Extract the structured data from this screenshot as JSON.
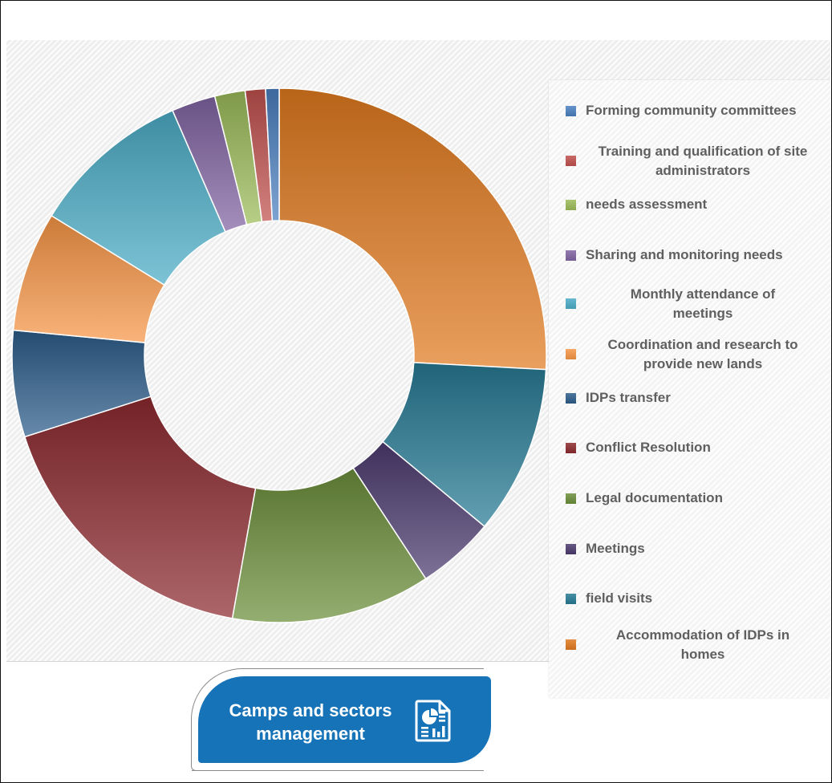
{
  "chart_data": {
    "type": "pie",
    "style": "donut",
    "legend_position": "right",
    "categories": [
      "Forming community committees",
      "Training and qualification of site administrators",
      "needs assessment",
      "Sharing and monitoring needs",
      "Monthly attendance of meetings",
      "Coordination and research to provide new lands",
      "IDPs transfer",
      "Conflict Resolution",
      "Legal documentation",
      "Meetings",
      "field visits",
      "Accommodation of IDPs in homes"
    ],
    "values": [
      0.8,
      1.2,
      1.8,
      2.6,
      9.5,
      7.1,
      6.3,
      16.9,
      11.8,
      4.6,
      10.0,
      25.3
    ],
    "colors": [
      "#4a7fbf",
      "#c0504d",
      "#9bbb59",
      "#8064a2",
      "#4bacc6",
      "#f79646",
      "#2c5d8a",
      "#8c2a2e",
      "#6b8e3a",
      "#4b3a6e",
      "#277a94",
      "#e07a1f"
    ],
    "legend_labels": [
      [
        "Forming community committees"
      ],
      [
        "Training and qualification of site",
        "administrators"
      ],
      [
        "needs assessment"
      ],
      [
        "Sharing and monitoring needs"
      ],
      [
        "Monthly attendance of",
        "meetings"
      ],
      [
        "Coordination and research to",
        "provide new lands"
      ],
      [
        "IDPs transfer"
      ],
      [
        "Conflict Resolution"
      ],
      [
        "Legal documentation"
      ],
      [
        "Meetings"
      ],
      [
        "field visits"
      ],
      [
        "Accommodation of IDPs in",
        "homes"
      ]
    ]
  },
  "badge": {
    "title_line1": "Camps and sectors",
    "title_line2": "management",
    "icon": "report-chart-icon"
  }
}
